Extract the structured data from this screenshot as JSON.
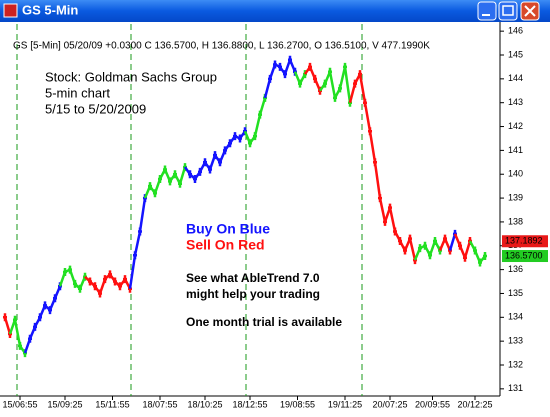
{
  "window_title": "GS 5-Min",
  "chart_data": {
    "type": "line",
    "header": "GS [5-Min] 05/20/09 +0.0300 C 136.5700, H 136.8800, L 136.2700, O 136.5100, V 477.1990K",
    "annotations": [
      "Stock: Goldman Sachs Group",
      "5-min chart",
      "5/15 to 5/20/2009"
    ],
    "buy_text": "Buy On Blue",
    "sell_text": "Sell On Red",
    "promo": [
      "See what AbleTrend 7.0",
      "might help your trading",
      "One month trial is available"
    ],
    "colors": {
      "b": "#1414ff",
      "g": "#22e022",
      "r": "#ff1010"
    },
    "values": [
      134.0,
      133.3,
      133.9,
      132.8,
      132.5,
      133.1,
      133.6,
      134.0,
      134.5,
      134.3,
      134.8,
      135.3,
      135.9,
      136.0,
      135.4,
      135.2,
      135.7,
      135.5,
      135.3,
      135.0,
      135.6,
      135.8,
      135.5,
      135.3,
      135.6,
      135.2,
      136.6,
      137.6,
      139.0,
      139.5,
      139.2,
      139.8,
      140.2,
      139.7,
      140.0,
      139.6,
      140.3,
      140.0,
      139.8,
      140.1,
      140.5,
      140.2,
      140.8,
      140.5,
      141.0,
      141.3,
      141.6,
      141.5,
      141.8,
      141.3,
      141.6,
      142.5,
      143.2,
      144.0,
      144.6,
      144.5,
      144.2,
      144.8,
      144.3,
      143.8,
      144.2,
      144.5,
      144.0,
      143.5,
      143.8,
      144.3,
      143.2,
      143.6,
      144.5,
      143.0,
      143.8,
      144.2,
      143.0,
      141.8,
      140.5,
      139.0,
      138.0,
      138.6,
      137.6,
      137.2,
      136.8,
      137.3,
      136.4,
      136.9,
      137.0,
      136.6,
      137.2,
      136.8,
      137.3,
      136.8,
      137.5,
      137.0,
      136.5,
      137.2,
      136.8,
      136.3,
      136.57
    ],
    "trend": [
      "r",
      "r",
      "g",
      "g",
      "g",
      "b",
      "b",
      "b",
      "b",
      "b",
      "b",
      "b",
      "g",
      "g",
      "g",
      "g",
      "g",
      "r",
      "r",
      "r",
      "r",
      "r",
      "r",
      "r",
      "r",
      "r",
      "b",
      "b",
      "b",
      "g",
      "g",
      "g",
      "g",
      "g",
      "g",
      "g",
      "g",
      "b",
      "b",
      "b",
      "b",
      "b",
      "b",
      "b",
      "b",
      "b",
      "b",
      "b",
      "b",
      "g",
      "g",
      "g",
      "g",
      "b",
      "b",
      "b",
      "b",
      "b",
      "b",
      "g",
      "g",
      "r",
      "r",
      "r",
      "g",
      "g",
      "g",
      "g",
      "g",
      "g",
      "r",
      "r",
      "r",
      "r",
      "r",
      "r",
      "r",
      "r",
      "r",
      "r",
      "r",
      "r",
      "r",
      "g",
      "g",
      "g",
      "g",
      "g",
      "r",
      "r",
      "b",
      "r",
      "r",
      "r",
      "g",
      "g",
      "g"
    ],
    "xlim": [
      -1,
      99
    ],
    "xticks": [
      {
        "value": 3,
        "label": "15/06:55"
      },
      {
        "value": 12,
        "label": "15/09:25"
      },
      {
        "value": 21.5,
        "label": "15/11:55"
      },
      {
        "value": 31,
        "label": "18/07:55"
      },
      {
        "value": 40,
        "label": "18/10:25"
      },
      {
        "value": 49,
        "label": "18/12:55"
      },
      {
        "value": 58.5,
        "label": "19/08:55"
      },
      {
        "value": 68,
        "label": "19/11:25"
      },
      {
        "value": 77,
        "label": "20/07:25"
      },
      {
        "value": 85.5,
        "label": "20/09:55"
      },
      {
        "value": 94,
        "label": "20/12:25"
      }
    ],
    "day_lines": [
      2.4,
      25.2,
      48.2,
      71.4
    ],
    "ylim": [
      130.7,
      146.3
    ],
    "yticks": [
      131,
      132,
      133,
      134,
      135,
      136,
      137,
      138,
      139,
      140,
      141,
      142,
      143,
      144,
      145,
      146
    ],
    "price_labels": [
      {
        "value": 137.1892,
        "label": "137.1892",
        "color": "#e81818"
      },
      {
        "value": 136.57,
        "label": "136.5700",
        "color": "#22cc22"
      }
    ]
  }
}
